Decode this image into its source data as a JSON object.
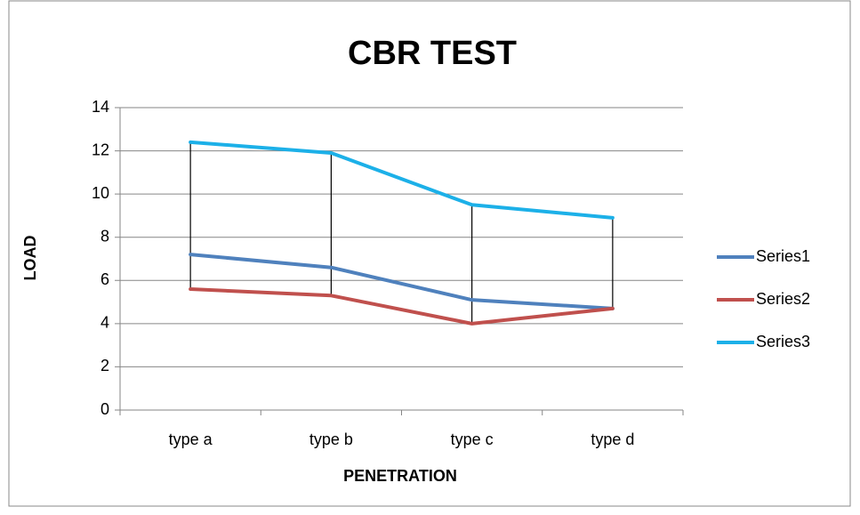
{
  "chart_data": {
    "type": "line",
    "title": "CBR TEST",
    "x_label": "PENETRATION",
    "y_label": "LOAD",
    "categories": [
      "type a",
      "type b",
      "type c",
      "type d"
    ],
    "series": [
      {
        "name": "Series1",
        "color": "#4f81bd",
        "values": [
          7.2,
          6.6,
          5.1,
          4.7
        ]
      },
      {
        "name": "Series2",
        "color": "#c0504d",
        "values": [
          5.6,
          5.3,
          4.0,
          4.7
        ]
      },
      {
        "name": "Series3",
        "color": "#1cb0e8",
        "values": [
          12.4,
          11.9,
          9.5,
          8.9
        ]
      }
    ],
    "ylim": [
      0,
      14
    ],
    "yticks": [
      0,
      2,
      4,
      6,
      8,
      10,
      12,
      14
    ],
    "grid": true,
    "high_low_lines": true,
    "legend": "right"
  }
}
